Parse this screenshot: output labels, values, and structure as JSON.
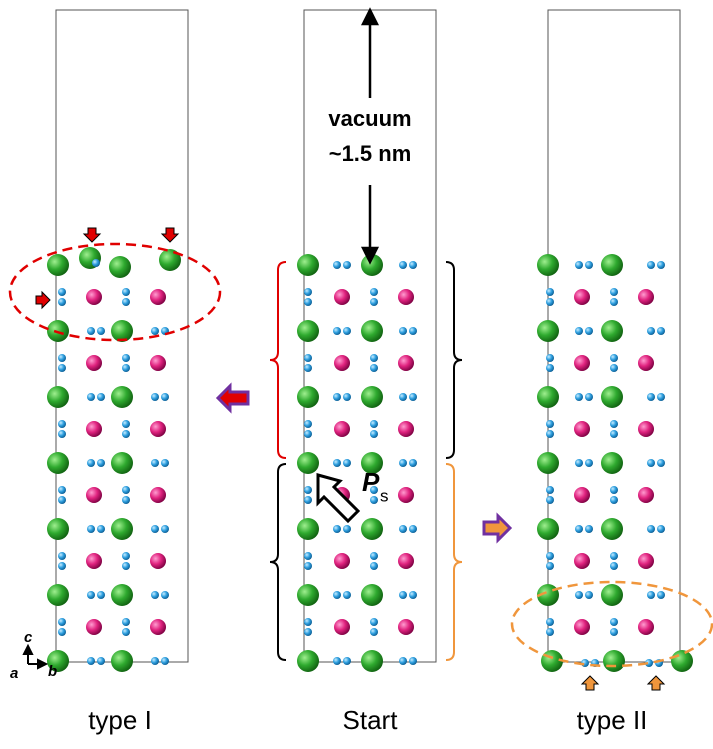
{
  "labels": {
    "vacuum": "vacuum",
    "distance": "~1.5 nm",
    "polarization": "P",
    "polarization_sub": "s",
    "axis_c": "c",
    "axis_a": "a",
    "axis_b": "b"
  },
  "panels": [
    "type I",
    "Start",
    "type II"
  ]
}
